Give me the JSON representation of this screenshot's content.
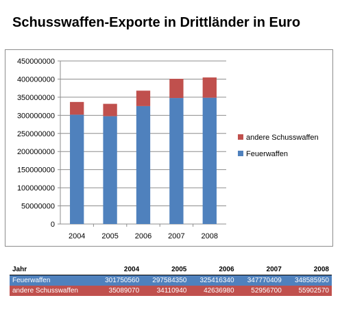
{
  "title": "Schusswaffen-Exporte in Drittländer in Euro",
  "colors": {
    "feuerwaffen": "#4f81bd",
    "andere": "#c0504d",
    "grid": "#8c8c8c"
  },
  "chart_data": {
    "type": "bar",
    "stacked": true,
    "categories": [
      "2004",
      "2005",
      "2006",
      "2007",
      "2008"
    ],
    "series": [
      {
        "name": "Feuerwaffen",
        "values": [
          301750560,
          297584350,
          325416340,
          347770409,
          348585950
        ]
      },
      {
        "name": "andere Schusswaffen",
        "values": [
          35089070,
          34110940,
          42636980,
          52956700,
          55902570
        ]
      }
    ],
    "yticks": [
      "0",
      "50000000",
      "100000000",
      "150000000",
      "200000000",
      "250000000",
      "300000000",
      "350000000",
      "400000000",
      "450000000"
    ],
    "ylim": [
      0,
      450000000
    ],
    "grid": true,
    "legend_position": "right"
  },
  "table": {
    "header": [
      "Jahr",
      "2004",
      "2005",
      "2006",
      "2007",
      "2008"
    ],
    "rows": [
      [
        "Feuerwaffen",
        "301750560",
        "297584350",
        "325416340",
        "347770409",
        "348585950"
      ],
      [
        "andere Schusswaffen",
        "35089070",
        "34110940",
        "42636980",
        "52956700",
        "55902570"
      ]
    ]
  }
}
